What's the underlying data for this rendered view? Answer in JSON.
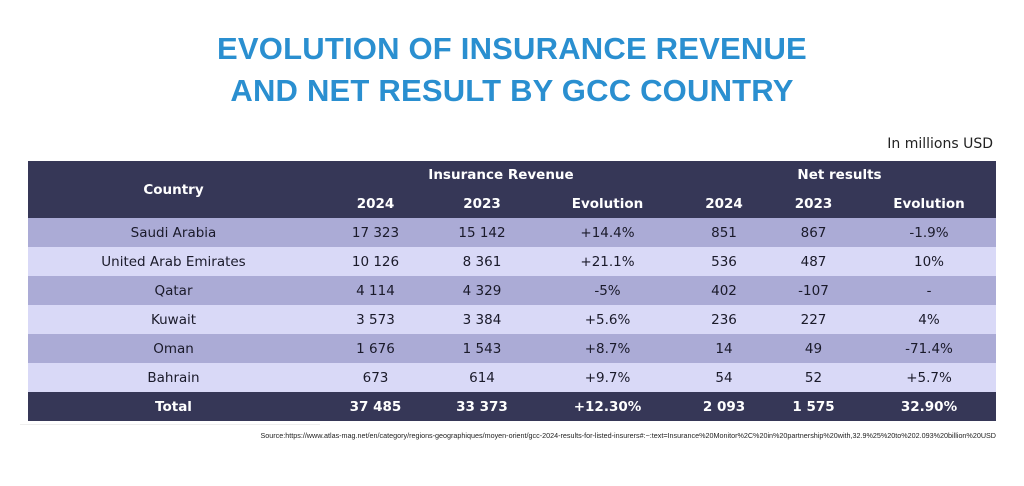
{
  "title": {
    "line1": "EVOLUTION OF INSURANCE REVENUE",
    "line2": "AND NET RESULT BY GCC COUNTRY"
  },
  "unit_note": "In millions USD",
  "table": {
    "header": {
      "country": "Country",
      "group_revenue": "Insurance Revenue",
      "group_net": "Net results",
      "rev_2024": "2024",
      "rev_2023": "2023",
      "rev_evolution": "Evolution",
      "net_2024": "2024",
      "net_2023": "2023",
      "net_evolution": "Evolution"
    },
    "rows": [
      {
        "country": "Saudi Arabia",
        "rev_2024": "17 323",
        "rev_2023": "15 142",
        "rev_evo": "+14.4%",
        "net_2024": "851",
        "net_2023": "867",
        "net_evo": "-1.9%"
      },
      {
        "country": "United Arab Emirates",
        "rev_2024": "10 126",
        "rev_2023": "8 361",
        "rev_evo": "+21.1%",
        "net_2024": "536",
        "net_2023": "487",
        "net_evo": "10%"
      },
      {
        "country": "Qatar",
        "rev_2024": "4 114",
        "rev_2023": "4 329",
        "rev_evo": "-5%",
        "net_2024": "402",
        "net_2023": "-107",
        "net_evo": "-"
      },
      {
        "country": "Kuwait",
        "rev_2024": "3 573",
        "rev_2023": "3 384",
        "rev_evo": "+5.6%",
        "net_2024": "236",
        "net_2023": "227",
        "net_evo": "4%"
      },
      {
        "country": "Oman",
        "rev_2024": "1 676",
        "rev_2023": "1 543",
        "rev_evo": "+8.7%",
        "net_2024": "14",
        "net_2023": "49",
        "net_evo": "-71.4%"
      },
      {
        "country": "Bahrain",
        "rev_2024": "673",
        "rev_2023": "614",
        "rev_evo": "+9.7%",
        "net_2024": "54",
        "net_2023": "52",
        "net_evo": "+5.7%"
      }
    ],
    "total": {
      "country": "Total",
      "rev_2024": "37 485",
      "rev_2023": "33 373",
      "rev_evo": "+12.30%",
      "net_2024": "2 093",
      "net_2023": "1 575",
      "net_evo": "32.90%"
    }
  },
  "source": "Source:https://www.atlas-mag.net/en/category/regions-geographiques/moyen-orient/gcc-2024-results-for-listed-insurers#:~:text=Insurance%20Monitor%2C%20in%20partnership%20with,32.9%25%20to%202.093%20billion%20USD"
}
